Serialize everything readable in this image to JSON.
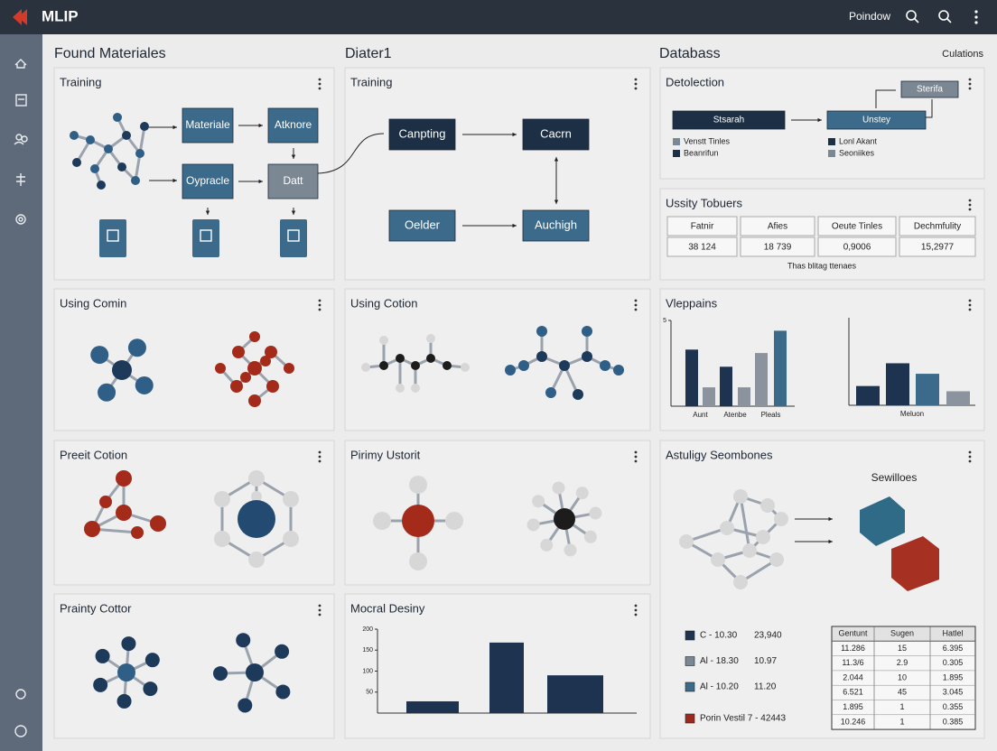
{
  "topbar": {
    "brand": "MLIP",
    "user": "Poindow"
  },
  "headings": [
    "Found Materiales",
    "Diater1",
    "Databass",
    "Culations"
  ],
  "panels": {
    "titles": [
      "Training",
      "Training",
      "Detolection",
      "Ussity Tobuers",
      "Using Comin",
      "Using Cotion",
      "Vleppains",
      "Preeit Cotion",
      "Pirimy Ustorit",
      "Astuligy Seombones",
      "Prainty Cottor",
      "Mocral Desiny"
    ]
  },
  "flow1": [
    "Materiale",
    "Atknore",
    "Oypracle",
    "Datt"
  ],
  "flow2": [
    "Canpting",
    "Cacrn",
    "Oelder",
    "Auchigh"
  ],
  "flow3": {
    "nodes": [
      "Stsarah",
      "Unstey",
      "Sterifa"
    ],
    "legend": [
      "Venstt Tinles",
      "Beanrifun",
      "Lonl Akant",
      "Seoniikes"
    ]
  },
  "usage_table": {
    "header": [
      "Fatnir",
      "Afies",
      "Oeute Tinles",
      "Dechmfulity"
    ],
    "rows": [
      [
        "38 124",
        "18 739",
        "0,9006",
        "15,2977"
      ]
    ],
    "caption": "Thas blitag ttenaes"
  },
  "structure_label": "Sewilloes",
  "legend4": [
    {
      "label": "C - 10.30",
      "value": "23,940",
      "color": "#1e3350"
    },
    {
      "label": "Al - 18.30",
      "value": "10.97",
      "color": "#7c8794"
    },
    {
      "label": "Al - 10.20",
      "value": "11.20",
      "color": "#3b6a8a"
    },
    {
      "label": "Porin Vestil 7 - 42443",
      "color": "#9a2a1c"
    }
  ],
  "result_table": {
    "header": [
      "Gentunt",
      "Sugen",
      "Hatlel"
    ],
    "rows": [
      [
        "11.286",
        "15",
        "6.395"
      ],
      [
        "11.3/6",
        "2.9",
        "0.305"
      ],
      [
        "2.044",
        "10",
        "1.895"
      ],
      [
        "6.521",
        "45",
        "3.045"
      ],
      [
        "1.895",
        "1",
        "0.355"
      ],
      [
        "10.246",
        "1",
        "0.385"
      ]
    ]
  },
  "chart_data": [
    {
      "type": "bar",
      "categories": [
        "Aunt",
        null,
        "Atenbe",
        null,
        "Pleals",
        null
      ],
      "values": [
        3.3,
        1.1,
        2.3,
        1.1,
        3.1,
        4.4
      ],
      "colors": [
        "#1e3350",
        "#8a939e",
        "#1e3350",
        "#8a939e",
        "#8a939e",
        "#3b6a8a"
      ],
      "ylim": [
        0,
        5
      ],
      "yticks": [
        5
      ]
    },
    {
      "type": "bar",
      "categories": [
        null,
        null,
        null,
        null
      ],
      "values": [
        1.1,
        2.4,
        1.8,
        0.8
      ],
      "colors": [
        "#1e3350",
        "#1e3350",
        "#3b6a8a",
        "#8a939e"
      ],
      "ylim": [
        0,
        5
      ],
      "xlabel": "Meluon"
    },
    {
      "type": "bar",
      "categories": [
        null,
        null,
        null
      ],
      "values": [
        28,
        168,
        90
      ],
      "colors": [
        "#1e3350",
        "#1e3350",
        "#1e3350"
      ],
      "ylim": [
        0,
        200
      ],
      "yticks": [
        50,
        100,
        150,
        200
      ]
    }
  ]
}
